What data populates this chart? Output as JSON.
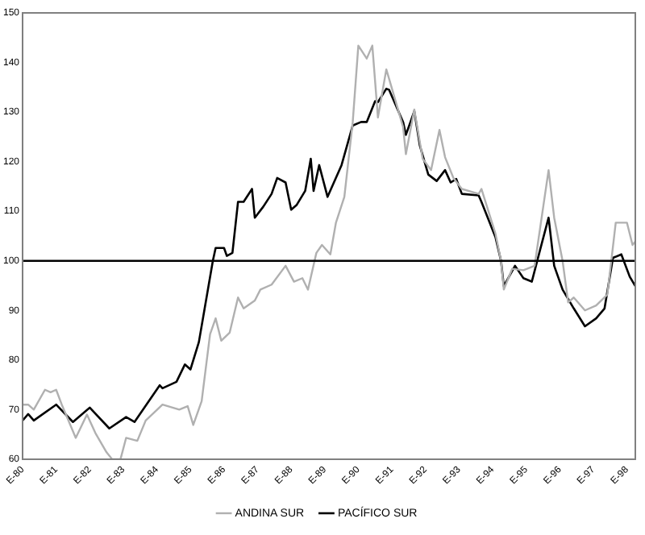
{
  "chart_data": {
    "type": "line",
    "xlim": [
      "1980-01",
      "1998-04"
    ],
    "xticks": [
      {
        "value": "1980-01",
        "label": "E-80"
      },
      {
        "value": "1981-01",
        "label": "E-81"
      },
      {
        "value": "1982-01",
        "label": "E-82"
      },
      {
        "value": "1983-01",
        "label": "E-83"
      },
      {
        "value": "1984-01",
        "label": "E-84"
      },
      {
        "value": "1985-01",
        "label": "E-85"
      },
      {
        "value": "1986-01",
        "label": "E-86"
      },
      {
        "value": "1987-01",
        "label": "E-87"
      },
      {
        "value": "1988-01",
        "label": "E-88"
      },
      {
        "value": "1989-01",
        "label": "E-89"
      },
      {
        "value": "1990-01",
        "label": "E-90"
      },
      {
        "value": "1991-01",
        "label": "E-91"
      },
      {
        "value": "1992-01",
        "label": "E-92"
      },
      {
        "value": "1993-01",
        "label": "E-93"
      },
      {
        "value": "1994-01",
        "label": "E-94"
      },
      {
        "value": "1995-01",
        "label": "E-95"
      },
      {
        "value": "1996-01",
        "label": "E-96"
      },
      {
        "value": "1997-01",
        "label": "E-97"
      },
      {
        "value": "1998-01",
        "label": "E-98"
      }
    ],
    "ylim": [
      60,
      150
    ],
    "yticks": [
      60,
      70,
      80,
      90,
      100,
      110,
      120,
      130,
      140,
      150
    ],
    "grid": false,
    "legend": "bottom",
    "marker": "none",
    "line_style": "solid",
    "ref_lines": [
      {
        "axis": "y",
        "value": 100,
        "color": "#000000"
      }
    ],
    "series": [
      {
        "name": "ANDINA SUR",
        "color": "#b0b0b0",
        "x": [
          "1980-01",
          "1980-03",
          "1980-05",
          "1980-09",
          "1980-11",
          "1981-01",
          "1981-03",
          "1981-08",
          "1981-12",
          "1982-03",
          "1982-07",
          "1982-09",
          "1982-12",
          "1983-02",
          "1983-06",
          "1983-09",
          "1984-03",
          "1984-09",
          "1984-12",
          "1985-02",
          "1985-05",
          "1985-08",
          "1985-10",
          "1985-12",
          "1986-03",
          "1986-06",
          "1986-08",
          "1986-12",
          "1987-02",
          "1987-06",
          "1987-11",
          "1988-02",
          "1988-05",
          "1988-07",
          "1988-10",
          "1988-12",
          "1989-03",
          "1989-05",
          "1989-08",
          "1989-11",
          "1990-01",
          "1990-04",
          "1990-06",
          "1990-08",
          "1990-11",
          "1990-12",
          "1991-05",
          "1991-06",
          "1991-09",
          "1991-12",
          "1992-03",
          "1992-06",
          "1992-08",
          "1992-11",
          "1993-02",
          "1993-08",
          "1993-09",
          "1994-02",
          "1994-04",
          "1994-05",
          "1994-08",
          "1994-12",
          "1995-04",
          "1995-09",
          "1995-11",
          "1996-02",
          "1996-04",
          "1996-06",
          "1996-10",
          "1997-02",
          "1997-06",
          "1997-09",
          "1998-01",
          "1998-03",
          "1998-04"
        ],
        "values": [
          71,
          71,
          70,
          74,
          73.5,
          74,
          71,
          64.3,
          69,
          65.3,
          61.4,
          60,
          60,
          64.3,
          63.7,
          67.8,
          71,
          70,
          70.7,
          66.9,
          71.7,
          85.2,
          88.4,
          83.9,
          85.5,
          92.6,
          90.4,
          92,
          94.2,
          95.2,
          99,
          95.8,
          96.5,
          94.2,
          101.6,
          103.2,
          101.3,
          107.7,
          112.9,
          128,
          143.4,
          140.8,
          143.4,
          128.9,
          138.6,
          136.7,
          127,
          121.5,
          130.5,
          120.6,
          118.3,
          126.4,
          120.9,
          116.7,
          114.5,
          113.5,
          114.5,
          105.5,
          100,
          94.2,
          98.4,
          98.1,
          99,
          118.3,
          108.7,
          100,
          91.6,
          92.6,
          90,
          91,
          93.2,
          107.7,
          107.7,
          103.2,
          103.9
        ]
      },
      {
        "name": "PACÍFICO SUR",
        "color": "#000000",
        "x": [
          "1980-01",
          "1980-03",
          "1980-05",
          "1981-01",
          "1981-07",
          "1982-01",
          "1982-08",
          "1983-02",
          "1983-05",
          "1984-02",
          "1984-03",
          "1984-08",
          "1984-11",
          "1985-01",
          "1985-04",
          "1985-09",
          "1985-10",
          "1986-01",
          "1986-02",
          "1986-04",
          "1986-06",
          "1986-08",
          "1986-11",
          "1986-12",
          "1987-03",
          "1987-06",
          "1987-08",
          "1987-11",
          "1988-01",
          "1988-03",
          "1988-06",
          "1988-08",
          "1988-09",
          "1988-11",
          "1989-02",
          "1989-07",
          "1989-11",
          "1990-02",
          "1990-04",
          "1990-07",
          "1990-08",
          "1990-11",
          "1990-12",
          "1991-05",
          "1991-06",
          "1991-09",
          "1991-11",
          "1992-02",
          "1992-05",
          "1992-08",
          "1992-10",
          "1992-12",
          "1993-02",
          "1993-08",
          "1993-09",
          "1994-02",
          "1994-04",
          "1994-05",
          "1994-09",
          "1994-12",
          "1995-03",
          "1995-06",
          "1995-09",
          "1995-11",
          "1996-02",
          "1996-06",
          "1996-10",
          "1997-02",
          "1997-05",
          "1997-08",
          "1997-11",
          "1998-02",
          "1998-04"
        ],
        "values": [
          67.8,
          69.1,
          67.8,
          71,
          67.5,
          70.4,
          66.2,
          68.5,
          67.5,
          74.9,
          74.3,
          75.6,
          79.1,
          78.1,
          83.6,
          100,
          102.6,
          102.6,
          101,
          101.6,
          111.9,
          111.9,
          114.5,
          108.7,
          110.9,
          113.5,
          116.7,
          115.8,
          110.3,
          111.3,
          114.1,
          120.6,
          114.1,
          119.3,
          112.9,
          119.3,
          127.3,
          128,
          128,
          132.2,
          132,
          134.7,
          134.5,
          128,
          125.4,
          130.2,
          123.2,
          117.4,
          116.1,
          118.3,
          115.8,
          116.5,
          113.5,
          113.2,
          111.9,
          104.8,
          100,
          94.9,
          99,
          96.5,
          95.8,
          102.3,
          108.7,
          99,
          94.2,
          90.4,
          86.8,
          88.4,
          90.4,
          100.6,
          101.3,
          96.8,
          94.9
        ]
      }
    ]
  }
}
